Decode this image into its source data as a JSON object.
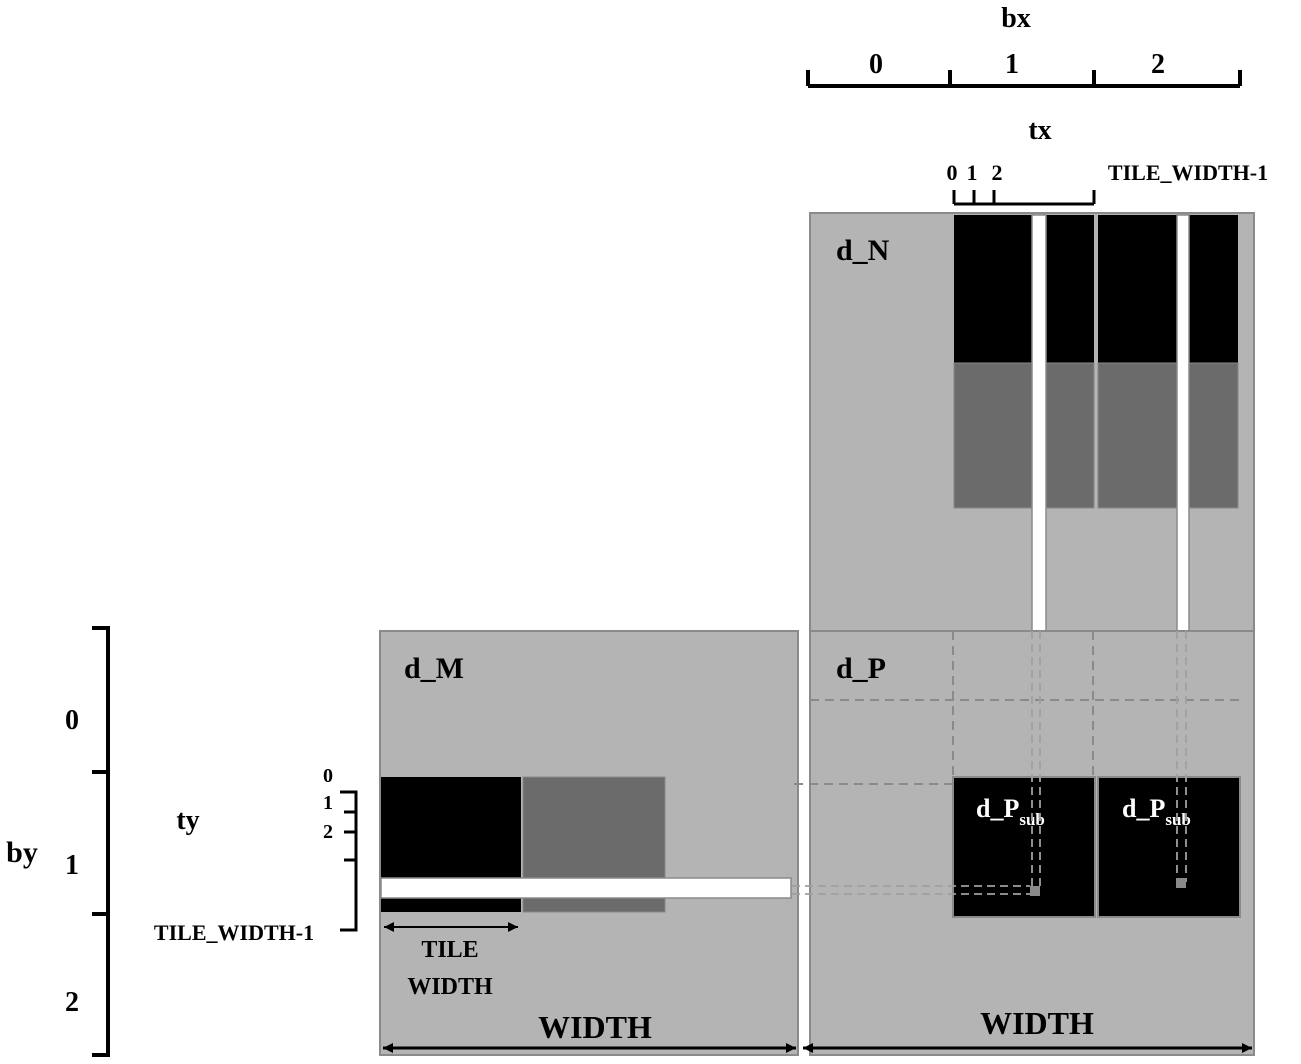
{
  "labels": {
    "bx": "bx",
    "bx_0": "0",
    "bx_1": "1",
    "bx_2": "2",
    "tx": "tx",
    "tx_0": "0",
    "tx_1": "1",
    "tx_2": "2",
    "tx_last": "TILE_WIDTH-1",
    "d_N": "d_N",
    "d_M": "d_M",
    "d_P": "d_P",
    "d_Psub_main": "d_P",
    "d_Psub_sub": "sub",
    "by": "by",
    "by_0": "0",
    "by_1": "1",
    "by_2": "2",
    "ty": "ty",
    "ty_0": "0",
    "ty_1": "1",
    "ty_2": "2",
    "ty_last": "TILE_WIDTH-1",
    "tile_width_line1": "TILE",
    "tile_width_line2": "WIDTH",
    "width_m": "WIDTH",
    "width_p": "WIDTH"
  },
  "colors": {
    "matrix_fill": "#b4b4b4",
    "matrix_border": "#8a8a8a",
    "tile_dark": "#000000",
    "tile_mid": "#6b6b6b",
    "strip_white": "#ffffff"
  }
}
